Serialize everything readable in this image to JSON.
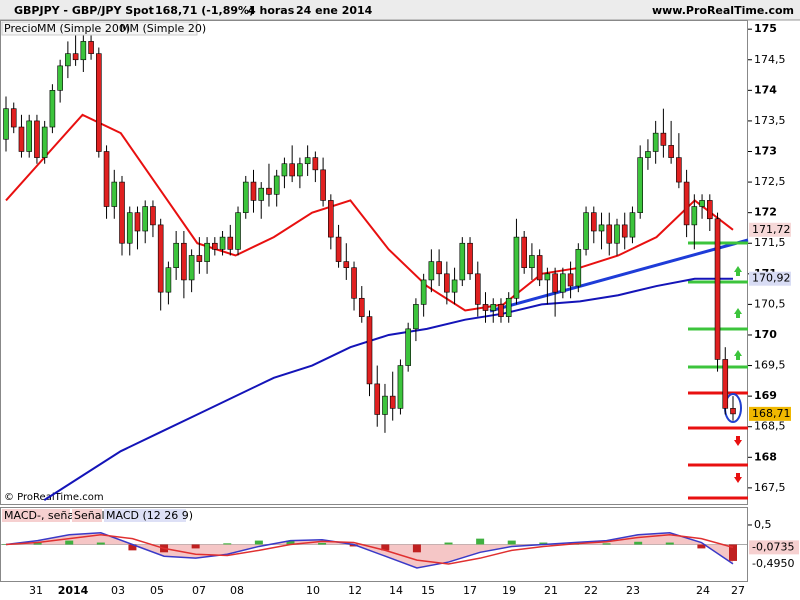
{
  "header": {
    "symbol": "GBPJPY - GBP/JPY Spot",
    "quote": "168,71 (-1,89%)",
    "period": "4 horas",
    "date": "24 ene 2014",
    "site": "www.ProRealTime.com"
  },
  "copyright": "© ProRealTime.com",
  "x_axis_labels": [
    "31",
    "2014",
    "03",
    "05",
    "07",
    "08",
    "10",
    "12",
    "14",
    "15",
    "17",
    "19",
    "21",
    "22",
    "23",
    "24",
    "27"
  ],
  "chart_data": [
    {
      "type": "candlestick",
      "price_label": "Precio",
      "up_color": "#3cc43c",
      "down_color": "#e02020",
      "ylim": [
        167.22,
        175.15
      ],
      "yticks": [
        175,
        {
          "value": 174.5,
          "label": "174,5"
        },
        174,
        {
          "value": 173.5,
          "label": "173,5"
        },
        173,
        {
          "value": 172.5,
          "label": "172,5"
        },
        172,
        {
          "value": 171.5,
          "label": "171,5"
        },
        171,
        {
          "value": 170.5,
          "label": "170,5"
        },
        170,
        {
          "value": 169.5,
          "label": "169,5"
        },
        169,
        {
          "value": 168.5,
          "label": "168,5"
        },
        168,
        {
          "value": 167.5,
          "label": "167,5"
        }
      ],
      "ohlc": [
        [
          173.2,
          173.9,
          173.0,
          173.7
        ],
        [
          173.7,
          173.8,
          173.3,
          173.4
        ],
        [
          173.4,
          173.6,
          172.9,
          173.0
        ],
        [
          173.0,
          173.6,
          172.9,
          173.5
        ],
        [
          173.5,
          173.6,
          172.8,
          172.9
        ],
        [
          172.9,
          173.5,
          172.8,
          173.4
        ],
        [
          173.4,
          174.1,
          173.3,
          174.0
        ],
        [
          174.0,
          174.5,
          173.8,
          174.4
        ],
        [
          174.4,
          174.8,
          174.2,
          174.6
        ],
        [
          174.6,
          174.9,
          174.4,
          174.5
        ],
        [
          174.5,
          174.9,
          174.3,
          174.8
        ],
        [
          174.8,
          175.0,
          174.5,
          174.6
        ],
        [
          174.6,
          174.7,
          172.9,
          173.0
        ],
        [
          173.0,
          173.1,
          171.9,
          172.1
        ],
        [
          172.1,
          172.7,
          171.9,
          172.5
        ],
        [
          172.5,
          172.6,
          171.3,
          171.5
        ],
        [
          171.5,
          172.1,
          171.3,
          172.0
        ],
        [
          172.0,
          172.1,
          171.4,
          171.7
        ],
        [
          171.7,
          172.2,
          171.5,
          172.1
        ],
        [
          172.1,
          172.2,
          171.6,
          171.8
        ],
        [
          171.8,
          171.9,
          170.4,
          170.7
        ],
        [
          170.7,
          171.2,
          170.5,
          171.1
        ],
        [
          171.1,
          171.7,
          170.9,
          171.5
        ],
        [
          171.5,
          171.7,
          170.6,
          170.9
        ],
        [
          170.9,
          171.4,
          170.7,
          171.3
        ],
        [
          171.3,
          171.6,
          171.0,
          171.2
        ],
        [
          171.2,
          171.6,
          171.0,
          171.5
        ],
        [
          171.5,
          171.6,
          171.3,
          171.4
        ],
        [
          171.4,
          171.7,
          171.3,
          171.6
        ],
        [
          171.6,
          171.8,
          171.3,
          171.4
        ],
        [
          171.4,
          172.1,
          171.3,
          172.0
        ],
        [
          172.0,
          172.6,
          171.9,
          172.5
        ],
        [
          172.5,
          172.7,
          172.0,
          172.2
        ],
        [
          172.2,
          172.5,
          171.9,
          172.4
        ],
        [
          172.4,
          172.8,
          172.1,
          172.3
        ],
        [
          172.3,
          172.7,
          172.1,
          172.6
        ],
        [
          172.6,
          172.9,
          172.4,
          172.8
        ],
        [
          172.8,
          173.1,
          172.5,
          172.6
        ],
        [
          172.6,
          172.9,
          172.4,
          172.8
        ],
        [
          172.8,
          173.1,
          172.6,
          172.9
        ],
        [
          172.9,
          173.0,
          172.5,
          172.7
        ],
        [
          172.7,
          172.9,
          172.1,
          172.2
        ],
        [
          172.2,
          172.3,
          171.4,
          171.6
        ],
        [
          171.6,
          171.8,
          171.1,
          171.2
        ],
        [
          171.2,
          171.5,
          170.9,
          171.1
        ],
        [
          171.1,
          171.2,
          170.4,
          170.6
        ],
        [
          170.6,
          170.8,
          170.2,
          170.3
        ],
        [
          170.3,
          170.4,
          169.0,
          169.2
        ],
        [
          169.2,
          169.5,
          168.5,
          168.7
        ],
        [
          168.7,
          169.2,
          168.4,
          169.0
        ],
        [
          169.0,
          169.4,
          168.6,
          168.8
        ],
        [
          168.8,
          169.6,
          168.7,
          169.5
        ],
        [
          169.5,
          170.2,
          169.4,
          170.1
        ],
        [
          170.1,
          170.6,
          169.9,
          170.5
        ],
        [
          170.5,
          171.0,
          170.3,
          170.9
        ],
        [
          170.9,
          171.4,
          170.7,
          171.2
        ],
        [
          171.2,
          171.4,
          170.8,
          171.0
        ],
        [
          171.0,
          171.2,
          170.5,
          170.7
        ],
        [
          170.7,
          171.1,
          170.5,
          170.9
        ],
        [
          170.9,
          171.6,
          170.8,
          171.5
        ],
        [
          171.5,
          171.6,
          170.9,
          171.0
        ],
        [
          171.0,
          171.2,
          170.3,
          170.5
        ],
        [
          170.5,
          170.7,
          170.2,
          170.4
        ],
        [
          170.4,
          170.6,
          170.2,
          170.5
        ],
        [
          170.5,
          170.6,
          170.2,
          170.3
        ],
        [
          170.3,
          170.7,
          170.2,
          170.6
        ],
        [
          170.6,
          171.9,
          170.5,
          171.6
        ],
        [
          171.6,
          171.7,
          171.0,
          171.1
        ],
        [
          171.1,
          171.5,
          170.9,
          171.3
        ],
        [
          171.3,
          171.4,
          170.8,
          170.9
        ],
        [
          170.9,
          171.1,
          170.5,
          171.0
        ],
        [
          171.0,
          171.1,
          170.3,
          170.7
        ],
        [
          170.7,
          171.1,
          170.6,
          171.0
        ],
        [
          171.0,
          171.2,
          170.6,
          170.8
        ],
        [
          170.8,
          171.5,
          170.7,
          171.4
        ],
        [
          171.4,
          172.1,
          171.3,
          172.0
        ],
        [
          172.0,
          172.1,
          171.5,
          171.7
        ],
        [
          171.7,
          172.0,
          171.4,
          171.8
        ],
        [
          171.8,
          172.0,
          171.3,
          171.5
        ],
        [
          171.5,
          171.9,
          171.3,
          171.8
        ],
        [
          171.8,
          172.0,
          171.4,
          171.6
        ],
        [
          171.6,
          172.1,
          171.5,
          172.0
        ],
        [
          172.0,
          173.1,
          171.9,
          172.9
        ],
        [
          172.9,
          173.2,
          172.7,
          173.0
        ],
        [
          173.0,
          173.5,
          172.8,
          173.3
        ],
        [
          173.3,
          173.7,
          172.9,
          173.1
        ],
        [
          173.1,
          173.5,
          172.8,
          172.9
        ],
        [
          172.9,
          173.3,
          172.4,
          172.5
        ],
        [
          172.5,
          172.7,
          171.6,
          171.8
        ],
        [
          171.8,
          172.3,
          171.4,
          172.1
        ],
        [
          172.1,
          172.3,
          171.9,
          172.2
        ],
        [
          172.2,
          172.3,
          171.7,
          171.9
        ],
        [
          171.9,
          172.0,
          169.4,
          169.6
        ],
        [
          169.6,
          169.8,
          168.7,
          168.8
        ],
        [
          168.8,
          169.0,
          168.6,
          168.71
        ]
      ],
      "close_label": "168,71",
      "series": [
        {
          "name": "MM (Simple 200)",
          "color": "#1414b8",
          "values": [
            null,
            167.3,
            167.7,
            168.1,
            168.4,
            168.7,
            169.0,
            169.3,
            169.5,
            169.8,
            170.0,
            170.1,
            170.25,
            170.35,
            170.5,
            170.55,
            170.65,
            170.8,
            170.92,
            170.92
          ],
          "value_labels": [
            null,
            null,
            null,
            null,
            null,
            null,
            null,
            null,
            null,
            null,
            null,
            null,
            null,
            null,
            null,
            null,
            null,
            null,
            null,
            "170,92"
          ]
        },
        {
          "name": "MM (Simple 20)",
          "color": "#e81010",
          "values": [
            172.2,
            172.9,
            173.6,
            173.3,
            172.4,
            171.5,
            171.3,
            171.6,
            172.0,
            172.2,
            171.4,
            170.8,
            170.4,
            170.5,
            171.0,
            171.1,
            171.3,
            171.6,
            172.2,
            171.72
          ],
          "value_labels": [
            null,
            null,
            null,
            null,
            null,
            null,
            null,
            null,
            null,
            null,
            null,
            null,
            null,
            null,
            null,
            null,
            null,
            null,
            null,
            "171,72"
          ]
        }
      ]
    },
    {
      "type": "macd",
      "ylim": [
        -0.96,
        0.96
      ],
      "yticks": [
        {
          "value": 0.5,
          "label": "0,5"
        }
      ],
      "legend": [
        "MACD-, señal",
        "Señal",
        "MACD (12 26 9)"
      ],
      "histogram": {
        "values": [
          0,
          0.05,
          0.1,
          0.05,
          -0.15,
          -0.2,
          -0.1,
          0.03,
          0.1,
          0.1,
          0.04,
          -0.05,
          -0.15,
          -0.2,
          0.05,
          0.15,
          0.1,
          0.05,
          0.03,
          0.03,
          0.07,
          0.05,
          -0.1,
          -0.42
        ]
      },
      "series": [
        {
          "name": "MACD (12 26 9)",
          "color": "#3a3ac8",
          "values": [
            0.0,
            0.1,
            0.25,
            0.3,
            0.0,
            -0.3,
            -0.35,
            -0.25,
            -0.05,
            0.1,
            0.12,
            0.0,
            -0.3,
            -0.6,
            -0.45,
            -0.2,
            -0.05,
            0.0,
            0.05,
            0.1,
            0.25,
            0.3,
            0.05,
            -0.495
          ],
          "value_labels": [
            null,
            null,
            null,
            null,
            null,
            null,
            null,
            null,
            null,
            null,
            null,
            null,
            null,
            null,
            null,
            null,
            null,
            null,
            null,
            null,
            null,
            null,
            null,
            "-0,4950"
          ]
        },
        {
          "name": "Señal",
          "color": "#e03030",
          "values": [
            0.0,
            0.05,
            0.15,
            0.25,
            0.15,
            -0.1,
            -0.25,
            -0.28,
            -0.15,
            0.0,
            0.08,
            0.05,
            -0.15,
            -0.4,
            -0.5,
            -0.35,
            -0.15,
            -0.05,
            0.02,
            0.07,
            0.18,
            0.25,
            0.15,
            -0.0735
          ],
          "value_labels": [
            null,
            null,
            null,
            null,
            null,
            null,
            null,
            null,
            null,
            null,
            null,
            null,
            null,
            null,
            null,
            null,
            null,
            null,
            null,
            null,
            null,
            null,
            null,
            "-0,0735"
          ]
        }
      ]
    }
  ]
}
